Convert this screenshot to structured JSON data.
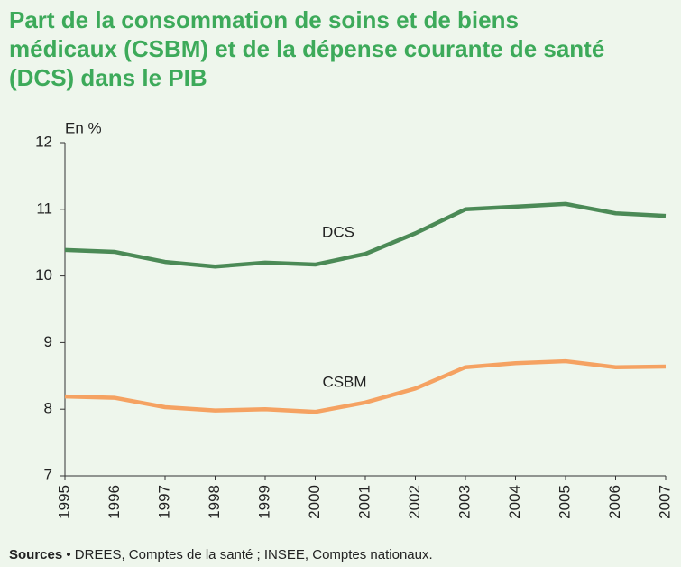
{
  "chart_data": {
    "type": "line",
    "title": "Part de la consommation de soins et de biens médicaux (CSBM) et de la dépense courante de santé (DCS) dans le PIB",
    "y_label": "En %",
    "x": [
      1995,
      1996,
      1997,
      1998,
      1999,
      2000,
      2001,
      2002,
      2003,
      2004,
      2005,
      2006,
      2007
    ],
    "xlim": [
      1995,
      2007
    ],
    "xticks": [
      1995,
      1996,
      1997,
      1998,
      1999,
      2000,
      2001,
      2002,
      2003,
      2004,
      2005,
      2006,
      2007
    ],
    "ylim": [
      7,
      12
    ],
    "yticks": [
      7,
      8,
      9,
      10,
      11,
      12
    ],
    "grid": false,
    "series": [
      {
        "name": "DCS",
        "color": "#4b8a56",
        "values": [
          10.39,
          10.36,
          10.21,
          10.14,
          10.2,
          10.17,
          10.33,
          10.64,
          11.0,
          11.04,
          11.08,
          10.94,
          10.9
        ]
      },
      {
        "name": "CSBM",
        "color": "#f5a262",
        "values": [
          8.19,
          8.17,
          8.03,
          7.98,
          8.0,
          7.96,
          8.1,
          8.31,
          8.63,
          8.69,
          8.72,
          8.63,
          8.64
        ]
      }
    ],
    "source_label": "Sources",
    "source": "• DREES, Comptes de la santé ; INSEE, Comptes nationaux."
  }
}
